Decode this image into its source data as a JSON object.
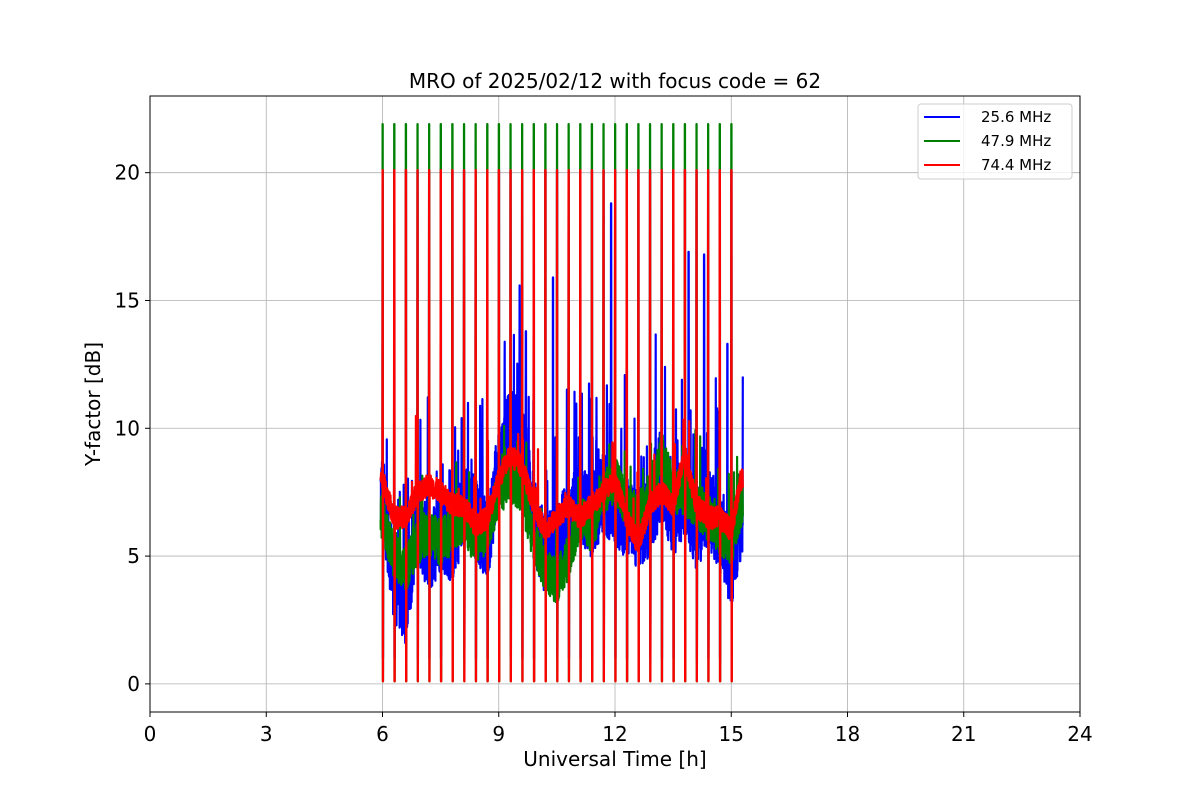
{
  "chart_data": {
    "type": "line",
    "title": "MRO of 2025/02/12 with focus code = 62",
    "xlabel": "Universal Time [h]",
    "ylabel": "Y-factor [dB]",
    "xlim": [
      0,
      24
    ],
    "ylim": [
      -1.1,
      23
    ],
    "x_ticks": [
      0,
      3,
      6,
      9,
      12,
      15,
      18,
      21,
      24
    ],
    "y_ticks": [
      0,
      5,
      10,
      15,
      20
    ],
    "grid": true,
    "legend_position": "top-right",
    "calibration_period_h": 0.3,
    "calibration_start_h": 6.0,
    "data_range_h": [
      5.95,
      15.3
    ],
    "series": [
      {
        "name": "25.6 MHz",
        "color": "#0000ff",
        "calibration_high": 20.1,
        "calibration_low": 1.0,
        "x": [
          6.0,
          6.3,
          6.6,
          6.9,
          7.2,
          7.5,
          7.8,
          8.1,
          8.4,
          8.7,
          9.0,
          9.3,
          9.6,
          9.9,
          10.2,
          10.5,
          10.8,
          11.1,
          11.4,
          11.7,
          12.0,
          12.3,
          12.6,
          12.9,
          13.2,
          13.5,
          13.8,
          14.1,
          14.4,
          14.7,
          15.0,
          15.25
        ],
        "y": [
          7.5,
          4.0,
          3.0,
          6.5,
          5.0,
          6.0,
          5.5,
          7.0,
          6.5,
          5.5,
          8.5,
          10.0,
          9.5,
          6.5,
          5.0,
          5.5,
          6.5,
          7.0,
          6.5,
          7.5,
          7.0,
          6.5,
          6.0,
          6.5,
          8.0,
          6.5,
          7.5,
          6.0,
          7.0,
          6.0,
          4.5,
          6.5
        ],
        "peaks": [
          {
            "x": 9.7,
            "y": 13.8
          },
          {
            "x": 10.4,
            "y": 15.9
          },
          {
            "x": 11.9,
            "y": 18.8
          },
          {
            "x": 13.9,
            "y": 16.9
          },
          {
            "x": 14.3,
            "y": 16.8
          },
          {
            "x": 14.9,
            "y": 13.3
          }
        ]
      },
      {
        "name": "47.9 MHz",
        "color": "#008000",
        "calibration_high": 21.9,
        "calibration_low": 0.1,
        "x": [
          6.0,
          6.3,
          6.6,
          6.9,
          7.2,
          7.5,
          7.8,
          8.1,
          8.4,
          8.7,
          9.0,
          9.3,
          9.6,
          9.9,
          10.2,
          10.5,
          10.8,
          11.1,
          11.4,
          11.7,
          12.0,
          12.3,
          12.6,
          12.9,
          13.2,
          13.5,
          13.8,
          14.1,
          14.4,
          14.7,
          15.0,
          15.25
        ],
        "y": [
          6.5,
          5.0,
          4.5,
          5.5,
          6.0,
          5.5,
          6.0,
          6.5,
          5.5,
          6.0,
          7.5,
          8.0,
          7.5,
          5.5,
          4.5,
          4.0,
          5.0,
          6.5,
          6.0,
          7.5,
          8.0,
          7.0,
          6.5,
          7.5,
          9.0,
          7.5,
          7.5,
          7.0,
          6.5,
          6.0,
          5.5,
          7.0
        ]
      },
      {
        "name": "74.4 MHz",
        "color": "#ff0000",
        "calibration_high": 20.1,
        "calibration_low": 0.1,
        "x": [
          6.0,
          6.3,
          6.6,
          6.9,
          7.2,
          7.5,
          7.8,
          8.1,
          8.4,
          8.7,
          9.0,
          9.3,
          9.6,
          9.9,
          10.2,
          10.5,
          10.8,
          11.1,
          11.4,
          11.7,
          12.0,
          12.3,
          12.6,
          12.9,
          13.2,
          13.5,
          13.8,
          14.1,
          14.4,
          14.7,
          15.0,
          15.25
        ],
        "y": [
          8.0,
          6.5,
          6.5,
          7.5,
          7.8,
          7.5,
          7.0,
          7.0,
          6.2,
          6.5,
          8.0,
          9.0,
          8.5,
          7.0,
          6.0,
          6.5,
          7.0,
          6.5,
          7.0,
          7.5,
          8.0,
          6.5,
          5.5,
          7.0,
          7.5,
          7.0,
          9.0,
          7.0,
          6.5,
          6.5,
          6.0,
          8.0
        ]
      }
    ]
  }
}
